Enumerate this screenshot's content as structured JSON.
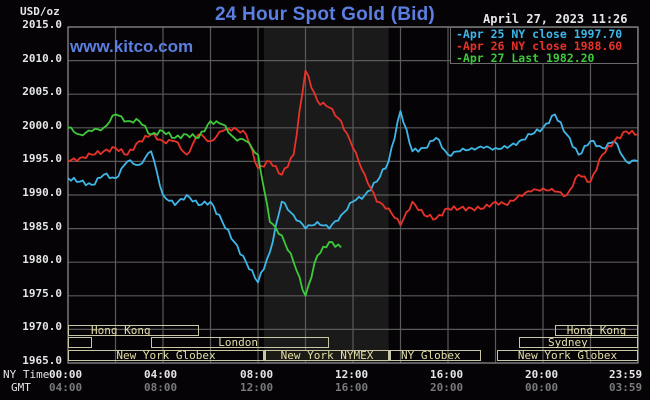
{
  "header": {
    "unit": "USD/oz",
    "title": "24 Hour Spot Gold (Bid)",
    "site": "www.kitco.com",
    "datetime": "April 27, 2023 11:26"
  },
  "legend": [
    {
      "label": "-Apr 25 NY close 1997.70",
      "color": "#3fb6e8"
    },
    {
      "label": "-Apr 26 NY close 1988.60",
      "color": "#e8322a"
    },
    {
      "label": "-Apr 27 Last 1982.20",
      "color": "#3ec93a"
    }
  ],
  "y_axis": [
    "2015.0",
    "2010.0",
    "2005.0",
    "2000.0",
    "1995.0",
    "1990.0",
    "1985.0",
    "1980.0",
    "1975.0",
    "1970.0",
    "1965.0"
  ],
  "x_axis": {
    "ny_label": "NY Time",
    "gmt_label": "GMT",
    "ny": [
      "00:00",
      "04:00",
      "08:00",
      "12:00",
      "16:00",
      "20:00",
      "23:59"
    ],
    "gmt": [
      "04:00",
      "08:00",
      "12:00",
      "16:00",
      "20:00",
      "00:00",
      "03:59"
    ]
  },
  "sessions": {
    "hong_kong_1": "Hong Kong",
    "london": "London",
    "ny_globex_1": "New York Globex",
    "ny_nymex": "New York NYMEX",
    "ny_globex_2": "NY Globex",
    "hong_kong_2": "Hong Kong",
    "sydney": "Sydney",
    "ny_globex_3": "New York Globex"
  },
  "chart_data": {
    "type": "line",
    "title": "24 Hour Spot Gold (Bid)",
    "ylabel": "USD/oz",
    "xlabel": "NY Time / GMT",
    "ylim": [
      1965,
      2015
    ],
    "xlim_hours": [
      0,
      24
    ],
    "grid": true,
    "legend_position": "top-right",
    "x_ticks": [
      "00:00",
      "04:00",
      "08:00",
      "12:00",
      "16:00",
      "20:00",
      "23:59"
    ],
    "shaded_region_hours": [
      8.25,
      13.5
    ],
    "series": [
      {
        "name": "Apr 25 NY close 1997.70",
        "color": "#3fb6e8",
        "x": [
          0,
          0.5,
          1,
          1.5,
          2,
          2.5,
          3,
          3.5,
          4,
          4.5,
          5,
          5.5,
          6,
          6.5,
          7,
          7.5,
          8,
          8.5,
          9,
          9.5,
          10,
          10.5,
          11,
          11.5,
          12,
          12.5,
          13,
          13.5,
          14,
          14.5,
          15,
          15.5,
          16,
          16.5,
          17,
          17.5,
          18,
          18.5,
          19,
          19.5,
          20,
          20.5,
          21,
          21.5,
          22,
          22.5,
          23,
          23.5,
          24
        ],
        "values": [
          1992.5,
          1992,
          1991.5,
          1993,
          1992.5,
          1995,
          1994.5,
          1996.5,
          1990,
          1988.5,
          1990,
          1988.5,
          1989,
          1986,
          1983,
          1980,
          1977,
          1981.5,
          1989,
          1987,
          1985,
          1986,
          1985,
          1987,
          1989,
          1990,
          1992,
          1995,
          2002.5,
          1996.5,
          1997,
          1998.5,
          1996,
          1996.5,
          1997,
          1997,
          1997,
          1997,
          1998,
          1999,
          2000,
          2002,
          1999,
          1996,
          1998,
          1997,
          1998,
          1995,
          1995
        ]
      },
      {
        "name": "Apr 26 NY close 1988.60",
        "color": "#e8322a",
        "x": [
          0,
          0.5,
          1,
          1.5,
          2,
          2.5,
          3,
          3.5,
          4,
          4.5,
          5,
          5.5,
          6,
          6.5,
          7,
          7.5,
          8,
          8.5,
          9,
          9.5,
          10,
          10.5,
          11,
          11.5,
          12,
          12.5,
          13,
          13.5,
          14,
          14.5,
          15,
          15.5,
          16,
          16.5,
          17,
          17.5,
          18,
          18.5,
          19,
          19.5,
          20,
          20.5,
          21,
          21.5,
          22,
          22.5,
          23,
          23.5,
          24
        ],
        "values": [
          1995,
          1995.5,
          1996,
          1996.5,
          1997,
          1996,
          1998,
          1999,
          1998,
          1998,
          1996,
          1999,
          1998,
          1999.5,
          2000,
          1999,
          1994,
          1995,
          1993,
          1996,
          2008.5,
          2004,
          2003,
          2001,
          1997,
          1993,
          1989,
          1988,
          1985.5,
          1989,
          1987,
          1986.5,
          1988,
          1988,
          1988,
          1988,
          1989,
          1988.5,
          1990,
          1990.5,
          1991,
          1990.5,
          1990,
          1993,
          1992,
          1996,
          1998,
          1999.5,
          1999
        ]
      },
      {
        "name": "Apr 27 Last 1982.20",
        "color": "#3ec93a",
        "x": [
          0,
          0.5,
          1,
          1.5,
          2,
          2.5,
          3,
          3.5,
          4,
          4.5,
          5,
          5.5,
          6,
          6.5,
          7,
          7.5,
          8,
          8.5,
          9,
          9.5,
          10,
          10.5,
          11,
          11.5
        ],
        "values": [
          2000,
          1999,
          1999.5,
          2000,
          2002,
          2001,
          2001,
          1999,
          1999.5,
          1998.5,
          1999,
          1998.5,
          2001,
          2000.5,
          1998.5,
          1998,
          1996,
          1986,
          1984,
          1980,
          1975,
          1981,
          1983,
          1982.2
        ]
      }
    ]
  }
}
